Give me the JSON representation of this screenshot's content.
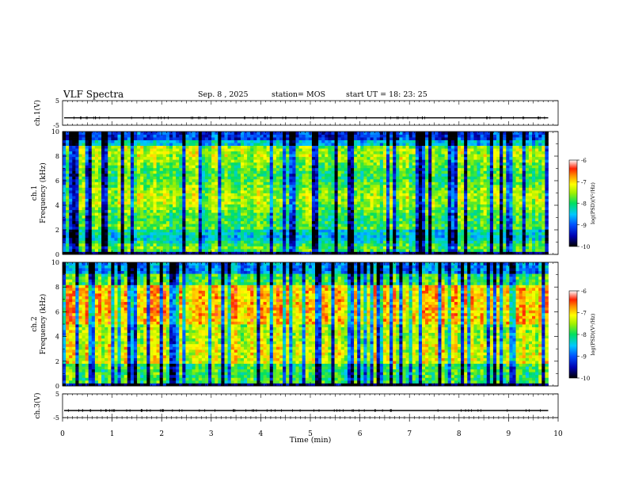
{
  "header": {
    "title": "VLF Spectra",
    "date": "Sep. 8 , 2025",
    "station": "station= MOS",
    "start_ut": "start  UT =   18: 23: 25"
  },
  "chart_data": [
    {
      "type": "line",
      "panel": "ch1-waveform",
      "ylabel": "ch.1(V)",
      "ylim": [
        -5,
        5
      ],
      "yticks": [
        "5",
        "-5"
      ],
      "baseline": -2
    },
    {
      "type": "heatmap",
      "panel": "ch1-spectrogram",
      "ylabel_channel": "ch.1",
      "ylabel": "Frequency (kHz)",
      "ylim": [
        0,
        10
      ],
      "yticks": [
        "0",
        "2",
        "4",
        "6",
        "8",
        "10"
      ],
      "colorbar": {
        "label": "log(PSD)(V²/Hz)",
        "range": [
          -10,
          -6
        ],
        "ticks": [
          "-6",
          "-7",
          "-8",
          "-9",
          "-10"
        ]
      }
    },
    {
      "type": "heatmap",
      "panel": "ch2-spectrogram",
      "ylabel_channel": "ch.2",
      "ylabel": "Frequency (kHz)",
      "ylim": [
        0,
        10
      ],
      "yticks": [
        "0",
        "2",
        "4",
        "6",
        "8",
        "10"
      ],
      "colorbar": {
        "label": "log(PSD)(V²/Hz)",
        "range": [
          -10,
          -6
        ],
        "ticks": [
          "-6",
          "-7",
          "-8",
          "-9",
          "-10"
        ]
      }
    },
    {
      "type": "line",
      "panel": "ch3-waveform",
      "ylabel": "ch.3(V)",
      "ylim": [
        -5,
        5
      ],
      "yticks": [
        "5",
        "-5"
      ],
      "baseline": -2
    }
  ],
  "xaxis": {
    "label": "Time  (min)",
    "xlim": [
      0,
      10
    ],
    "data_end": 9.8,
    "ticks": [
      "0",
      "1",
      "2",
      "3",
      "4",
      "5",
      "6",
      "7",
      "8",
      "9",
      "10"
    ]
  }
}
